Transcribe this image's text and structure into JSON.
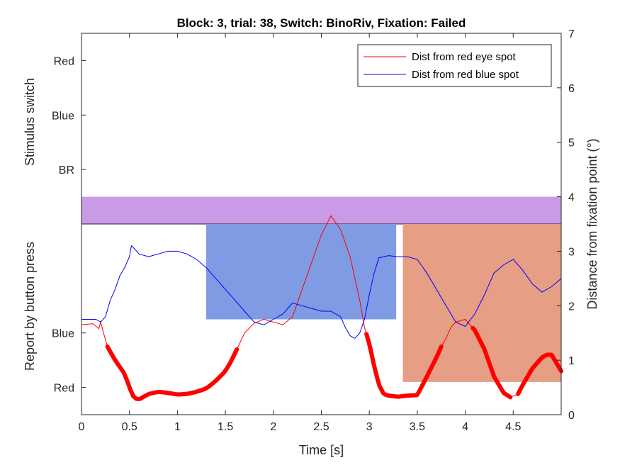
{
  "chart_data": {
    "type": "line",
    "title": "Block: 3, trial: 38, Switch: BinoRiv, Fixation: Failed",
    "xlabel": "Time [s]",
    "ylabel_right": "Distance from fixation point (°)",
    "ylabel_left_top": "Stimulus switch",
    "ylabel_left_bottom": "Report by button press",
    "xlim": [
      0,
      5
    ],
    "ylim_right": [
      0,
      7
    ],
    "x_ticks": [
      0,
      0.5,
      1,
      1.5,
      2,
      2.5,
      3,
      3.5,
      4,
      4.5
    ],
    "x_tick_labels": [
      "0",
      "0.5",
      "1",
      "1.5",
      "2",
      "2.5",
      "3",
      "3.5",
      "4",
      "4.5"
    ],
    "y_ticks_right": [
      0,
      1,
      2,
      3,
      4,
      5,
      6,
      7
    ],
    "y_tick_labels_right": [
      "0",
      "1",
      "2",
      "3",
      "4",
      "5",
      "6",
      "7"
    ],
    "y_ticks_left": [
      {
        "label": "Red",
        "value": 6.5
      },
      {
        "label": "Blue",
        "value": 5.5
      },
      {
        "label": "BR",
        "value": 4.5
      },
      {
        "label": "Blue",
        "value": 1.5
      },
      {
        "label": "Red",
        "value": 0.5
      }
    ],
    "stimulus_band": {
      "label": "BR",
      "x": [
        0,
        5
      ],
      "y": [
        3.5,
        4.0
      ],
      "color": "#C99AE5"
    },
    "report_blocks": [
      {
        "label": "Blue",
        "x": [
          1.3,
          3.28
        ],
        "y": [
          1.75,
          3.5
        ],
        "color": "#7F9BE3"
      },
      {
        "label": "Red",
        "x": [
          3.35,
          5.0
        ],
        "y": [
          0.6,
          3.5
        ],
        "color": "#E69E85"
      }
    ],
    "legend": {
      "position": "top-right",
      "entries": [
        {
          "label": "Dist from red eye spot",
          "color": "#FF0000"
        },
        {
          "label": "Dist from red blue spot",
          "color": "#0000FF"
        }
      ]
    },
    "series": [
      {
        "name": "Dist from red eye spot",
        "color": "#FF0000",
        "x": [
          0,
          0.12,
          0.18,
          0.2,
          0.23,
          0.27,
          0.35,
          0.45,
          0.5,
          0.55,
          0.6,
          0.65,
          0.7,
          0.8,
          0.9,
          1.0,
          1.1,
          1.2,
          1.3,
          1.4,
          1.5,
          1.55,
          1.62,
          1.7,
          1.8,
          1.9,
          2.0,
          2.1,
          2.2,
          2.3,
          2.4,
          2.5,
          2.6,
          2.7,
          2.8,
          2.9,
          2.95,
          3.0,
          3.05,
          3.1,
          3.15,
          3.2,
          3.3,
          3.4,
          3.5,
          3.6,
          3.7,
          3.75,
          3.8,
          3.85,
          3.9,
          4.0,
          4.1,
          4.2,
          4.3,
          4.4,
          4.47,
          4.55,
          4.6,
          4.7,
          4.8,
          4.85,
          4.9,
          4.95,
          5.0
        ],
        "y": [
          1.65,
          1.67,
          1.58,
          1.7,
          1.5,
          1.25,
          1.0,
          0.75,
          0.5,
          0.3,
          0.28,
          0.33,
          0.38,
          0.42,
          0.4,
          0.37,
          0.38,
          0.42,
          0.48,
          0.62,
          0.8,
          0.95,
          1.2,
          1.5,
          1.68,
          1.75,
          1.7,
          1.65,
          1.8,
          2.3,
          2.8,
          3.3,
          3.65,
          3.4,
          2.9,
          2.1,
          1.6,
          1.3,
          0.9,
          0.55,
          0.38,
          0.35,
          0.33,
          0.35,
          0.36,
          0.7,
          1.05,
          1.25,
          1.4,
          1.6,
          1.7,
          1.75,
          1.55,
          1.2,
          0.7,
          0.4,
          0.32,
          0.38,
          0.55,
          0.85,
          1.05,
          1.1,
          1.1,
          0.95,
          0.8
        ]
      },
      {
        "name": "Dist from red blue spot",
        "color": "#0000FF",
        "x": [
          0,
          0.15,
          0.2,
          0.25,
          0.3,
          0.35,
          0.4,
          0.45,
          0.5,
          0.52,
          0.55,
          0.6,
          0.7,
          0.8,
          0.9,
          1.0,
          1.1,
          1.2,
          1.3,
          1.4,
          1.5,
          1.6,
          1.7,
          1.8,
          1.9,
          2.0,
          2.1,
          2.2,
          2.3,
          2.4,
          2.5,
          2.6,
          2.7,
          2.75,
          2.8,
          2.85,
          2.9,
          2.95,
          3.0,
          3.05,
          3.1,
          3.2,
          3.3,
          3.4,
          3.5,
          3.6,
          3.7,
          3.8,
          3.9,
          4.0,
          4.1,
          4.2,
          4.3,
          4.4,
          4.5,
          4.6,
          4.7,
          4.8,
          4.9,
          5.0
        ],
        "y": [
          1.75,
          1.75,
          1.7,
          1.8,
          2.1,
          2.3,
          2.55,
          2.7,
          2.9,
          3.1,
          3.05,
          2.95,
          2.9,
          2.95,
          3.0,
          3.0,
          2.95,
          2.85,
          2.7,
          2.5,
          2.3,
          2.1,
          1.9,
          1.7,
          1.65,
          1.75,
          1.85,
          2.05,
          2.0,
          1.95,
          1.9,
          1.9,
          1.8,
          1.6,
          1.45,
          1.4,
          1.5,
          1.75,
          2.2,
          2.6,
          2.88,
          2.92,
          2.9,
          2.9,
          2.85,
          2.6,
          2.3,
          2.0,
          1.7,
          1.62,
          1.85,
          2.2,
          2.6,
          2.75,
          2.85,
          2.65,
          2.4,
          2.25,
          2.35,
          2.5
        ]
      }
    ],
    "thick_segments_time_ranges": [
      [
        0.27,
        1.62
      ],
      [
        2.97,
        3.75
      ],
      [
        4.08,
        4.47
      ],
      [
        4.55,
        5.0
      ]
    ]
  }
}
